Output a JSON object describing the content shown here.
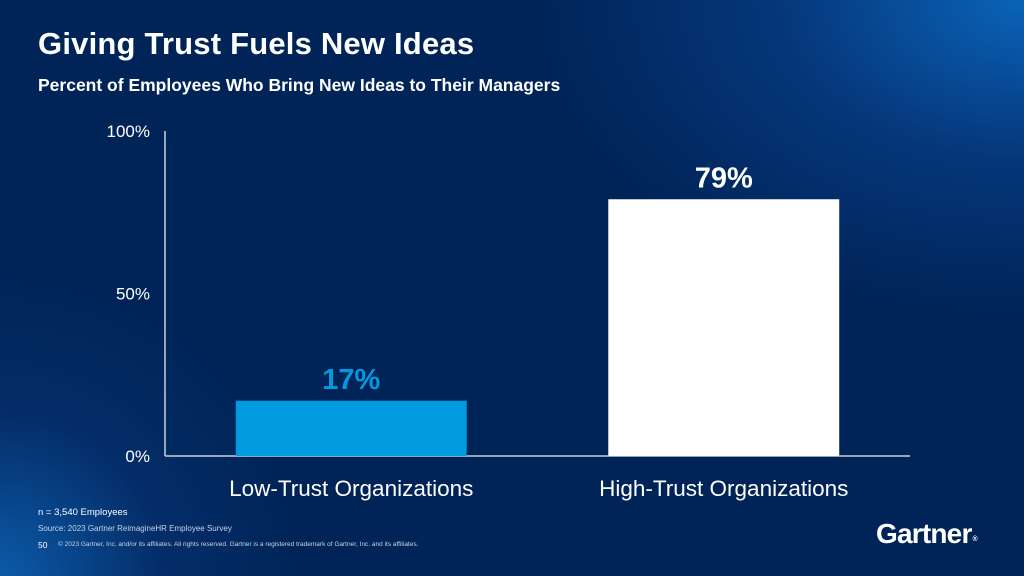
{
  "slide": {
    "title": "Giving Trust Fuels New Ideas",
    "subtitle": "Percent of Employees Who Bring New Ideas to Their Managers",
    "footnote": "n = 3,540 Employees",
    "source": "Source: 2023 Gartner ReimagineHR Employee Survey",
    "page_number": "50",
    "copyright": "© 2023 Gartner, Inc. and/or its affiliates. All rights reserved. Gartner is a registered trademark of Gartner, Inc. and its affiliates.",
    "logo_text": "Gartner",
    "logo_mark": "®"
  },
  "chart_data": {
    "type": "bar",
    "categories": [
      "Low-Trust Organizations",
      "High-Trust Organizations"
    ],
    "values": [
      17,
      79
    ],
    "data_labels": [
      "17%",
      "79%"
    ],
    "bar_colors": [
      "#009ade",
      "#ffffff"
    ],
    "label_colors": [
      "#009ade",
      "#ffffff"
    ],
    "yticks": [
      "0%",
      "50%",
      "100%"
    ],
    "ytick_values": [
      0,
      50,
      100
    ],
    "ylim": [
      0,
      100
    ],
    "grid": false,
    "legend": "none"
  }
}
